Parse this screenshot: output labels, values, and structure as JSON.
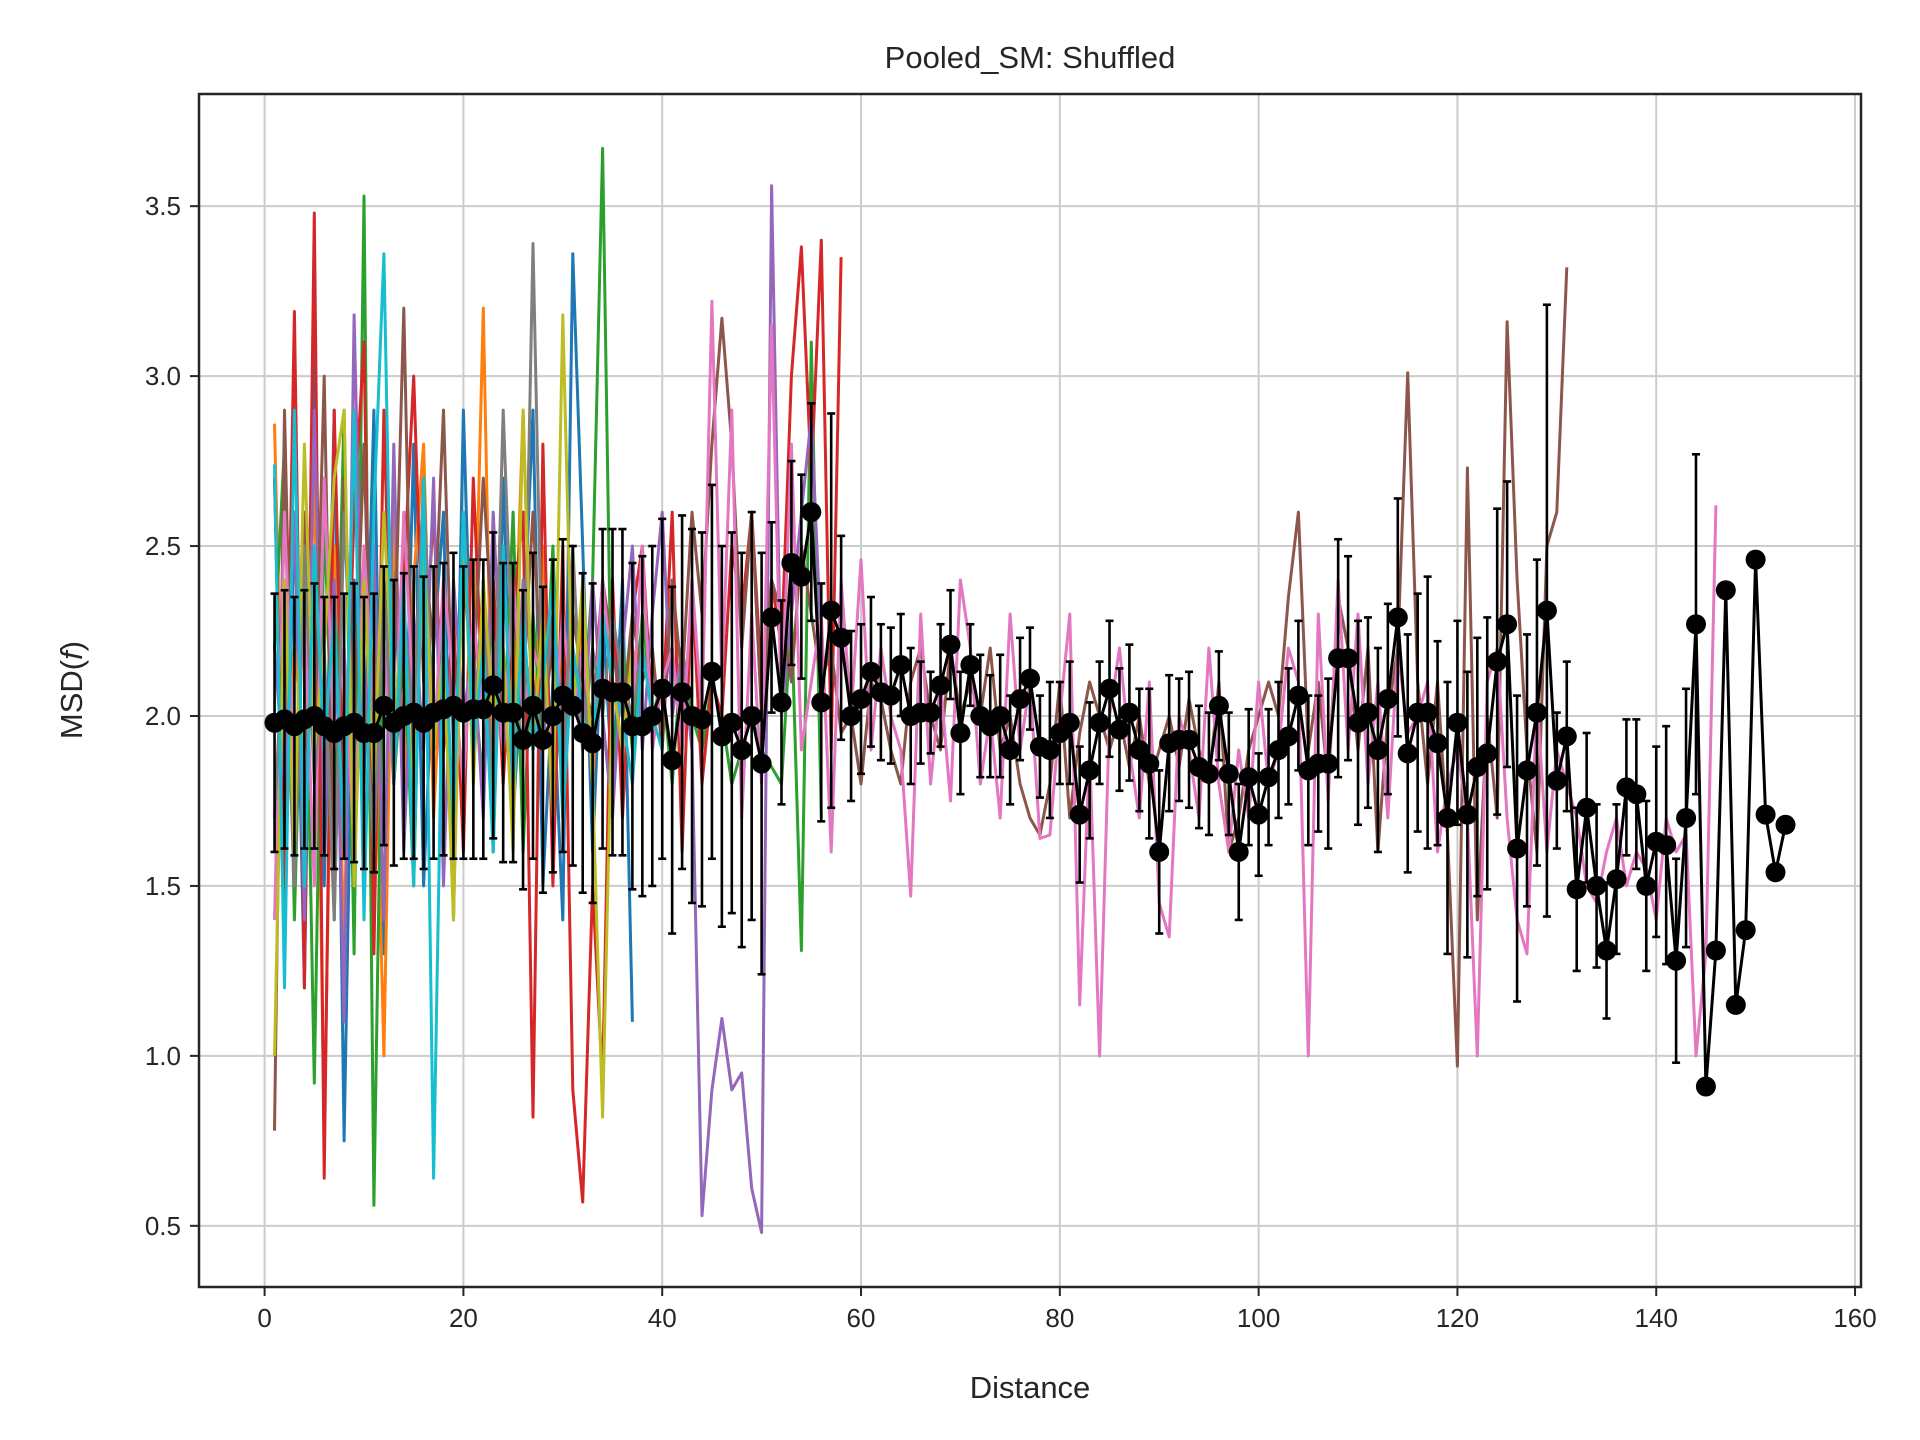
{
  "chart_data": {
    "type": "line",
    "title": "Pooled_SM: Shuffled",
    "xlabel": "Distance",
    "ylabel_main": "MSD(",
    "ylabel_var": "f",
    "ylabel_close": ")",
    "xlim": [
      -6.6,
      160.6
    ],
    "ylim": [
      0.32,
      3.83
    ],
    "xticks": [
      0,
      20,
      40,
      60,
      80,
      100,
      120,
      140,
      160
    ],
    "yticks": [
      0.5,
      1.0,
      1.5,
      2.0,
      2.5,
      3.0,
      3.5
    ],
    "xtick_labels": [
      "0",
      "20",
      "40",
      "60",
      "80",
      "100",
      "120",
      "140",
      "160"
    ],
    "ytick_labels": [
      "0.5",
      "1.0",
      "1.5",
      "2.0",
      "2.5",
      "3.0",
      "3.5"
    ],
    "grid": true,
    "legend": "none",
    "series": [
      {
        "color": "#1f77b4",
        "x_start": 1,
        "values": [
          2.7,
          1.4,
          2.6,
          1.2,
          3.1,
          1.5,
          2.9,
          0.75,
          2.4,
          1.8,
          2.9,
          1.3,
          2.5,
          1.7,
          2.8,
          1.5,
          2.2,
          2.6,
          1.4,
          2.9,
          1.9,
          2.4,
          1.6,
          2.7,
          1.7,
          2.2,
          2.9,
          1.5,
          2.1,
          1.4,
          3.36,
          2.5,
          1.6,
          2.3,
          1.8,
          2.4,
          1.1
        ]
      },
      {
        "color": "#ff7f0e",
        "x_start": 1,
        "values": [
          2.86,
          1.6,
          2.2,
          1.9,
          2.7,
          0.77,
          2.5,
          1.3,
          2.9,
          1.6,
          2.2,
          1.0,
          2.6,
          1.8,
          2.4,
          2.8,
          1.7,
          2.3,
          1.5,
          2.6,
          2.0,
          3.2,
          1.7,
          2.4,
          2.0,
          2.9,
          1.9,
          2.5,
          1.7,
          2.2,
          2.0,
          2.3,
          1.8,
          2.4,
          2.1,
          1.9,
          2.2,
          2.0
        ]
      },
      {
        "color": "#2ca02c",
        "x_start": 1,
        "values": [
          2.2,
          2.8,
          1.4,
          2.5,
          0.92,
          2.6,
          1.7,
          2.9,
          1.3,
          3.53,
          0.56,
          2.4,
          1.8,
          2.2,
          1.5,
          2.7,
          1.9,
          2.3,
          1.6,
          2.5,
          2.1,
          1.8,
          2.4,
          1.9,
          2.6,
          1.6,
          2.3,
          1.9,
          2.5,
          1.7,
          2.2,
          2.0,
          2.4,
          3.67,
          1.8,
          2.2,
          1.9,
          2.3,
          2.0,
          2.1,
          1.8,
          2.2,
          2.0,
          1.9,
          2.1,
          2.0,
          1.8,
          1.9,
          2.0,
          1.9,
          1.85,
          1.8,
          2.3,
          1.31,
          3.1,
          1.7
        ]
      },
      {
        "color": "#d62728",
        "x_start": 1,
        "values": [
          2.7,
          1.5,
          3.19,
          1.2,
          3.48,
          0.64,
          2.9,
          1.7,
          2.6,
          3.1,
          1.3,
          2.9,
          1.8,
          2.4,
          3.0,
          2.1,
          2.6,
          1.9,
          2.3,
          1.6,
          2.7,
          2.0,
          2.4,
          1.8,
          2.3,
          2.6,
          0.82,
          2.8,
          1.5,
          2.5,
          0.9,
          0.57,
          1.5,
          0.92,
          2.4,
          1.7,
          2.3,
          2.5,
          2.0,
          2.0,
          2.6,
          1.6,
          2.4,
          1.8,
          2.1,
          2.0,
          2.5,
          2.3,
          2.6,
          2.1,
          2.4,
          2.2,
          3.0,
          3.38,
          2.7,
          3.4,
          1.9,
          3.35
        ]
      },
      {
        "color": "#9467bd",
        "x_start": 1,
        "values": [
          2.2,
          1.8,
          2.6,
          1.4,
          2.9,
          1.7,
          2.4,
          1.1,
          3.18,
          1.9,
          2.5,
          1.4,
          2.8,
          1.6,
          2.3,
          1.9,
          2.7,
          1.5,
          2.4,
          2.0,
          2.2,
          1.7,
          2.6,
          2.0,
          1.8,
          2.4,
          2.1,
          1.9,
          2.3,
          2.0,
          2.2,
          1.9,
          2.4,
          2.0,
          1.7,
          2.2,
          2.5,
          1.9,
          2.3,
          2.6,
          2.0,
          2.2,
          1.9,
          0.53,
          0.9,
          1.11,
          0.9,
          0.95,
          0.61,
          0.48,
          3.56,
          2.0,
          2.3,
          2.6,
          2.88,
          2.2
        ]
      },
      {
        "color": "#8c564b",
        "x_start": 1,
        "values": [
          0.78,
          2.9,
          1.6,
          2.6,
          1.9,
          3.0,
          1.4,
          2.7,
          2.0,
          2.8,
          1.7,
          2.4,
          2.1,
          3.2,
          1.8,
          2.5,
          2.2,
          2.9,
          1.9,
          2.4,
          2.1,
          2.7,
          2.2,
          2.0,
          2.3,
          2.1,
          2.6,
          2.0,
          2.2,
          1.9,
          2.3,
          2.1,
          2.0,
          2.4,
          2.2,
          2.0,
          2.3,
          2.1,
          2.2,
          1.9,
          2.4,
          2.1,
          2.6,
          2.3,
          2.8,
          3.17,
          2.8,
          2.2,
          2.6,
          2.0,
          2.4,
          2.3,
          2.1,
          2.5,
          2.3,
          2.1,
          2.2,
          1.95,
          2.0,
          1.8,
          2.1,
          2.05,
          1.9,
          1.8,
          2.1,
          2.2,
          2.0,
          1.9,
          2.2,
          2.0,
          2.1,
          2.0,
          2.2,
          1.9,
          2.0,
          1.8,
          1.7,
          1.65,
          1.8,
          2.1,
          1.7,
          1.95,
          2.1,
          2.0,
          1.9,
          2.0,
          1.85,
          2.0,
          1.8,
          1.9,
          2.0,
          1.85,
          2.05,
          1.9,
          1.8,
          2.1,
          1.6,
          1.7,
          1.9,
          2.0,
          2.1,
          2.0,
          2.35,
          2.6,
          1.9,
          2.1,
          1.8,
          2.35,
          2.2,
          1.9,
          2.2,
          1.6,
          2.0,
          2.2,
          3.01,
          2.1,
          1.8,
          2.1,
          1.65,
          0.97,
          2.73,
          1.4,
          2.0,
          1.7,
          3.16,
          2.4,
          1.9,
          1.6,
          2.5,
          2.6,
          3.32
        ]
      },
      {
        "color": "#e377c2",
        "x_start": 1,
        "values": [
          1.4,
          2.6,
          1.8,
          2.3,
          1.5,
          2.7,
          1.9,
          2.2,
          1.6,
          2.5,
          2.0,
          2.2,
          1.8,
          2.6,
          2.0,
          2.3,
          1.9,
          2.4,
          2.1,
          1.8,
          2.3,
          2.0,
          2.2,
          1.9,
          2.4,
          2.0,
          2.2,
          2.1,
          1.9,
          2.3,
          2.0,
          2.2,
          1.9,
          2.4,
          2.1,
          1.9,
          2.0,
          2.5,
          1.9,
          2.1,
          2.2,
          1.9,
          2.4,
          2.0,
          3.22,
          2.1,
          2.9,
          1.7,
          2.3,
          1.8,
          3.15,
          2.0,
          2.8,
          1.9,
          2.1,
          2.3,
          1.6,
          2.4,
          2.0,
          2.46,
          1.9,
          2.2,
          2.0,
          1.9,
          1.47,
          2.3,
          1.8,
          2.1,
          1.75,
          2.4,
          2.2,
          1.8,
          2.0,
          1.7,
          2.3,
          1.9,
          2.1,
          1.64,
          1.65,
          2.0,
          2.3,
          1.15,
          1.9,
          1.0,
          2.0,
          2.2,
          1.9,
          1.7,
          2.1,
          1.45,
          1.35,
          2.0,
          1.9,
          1.7,
          2.2,
          1.8,
          1.6,
          1.9,
          1.7,
          2.1,
          1.8,
          1.9,
          2.2,
          2.1,
          1.0,
          2.3,
          1.75,
          2.4,
          1.9,
          2.3,
          1.8,
          2.1,
          1.7,
          2.2,
          1.95,
          2.0,
          2.1,
          1.6,
          1.8,
          1.9,
          1.7,
          1.0,
          2.1,
          2.2,
          1.7,
          1.4,
          1.3,
          2.05,
          1.6,
          1.9,
          1.8,
          1.7,
          1.5,
          1.45,
          1.6,
          1.7,
          1.5,
          1.6,
          1.55,
          1.4,
          1.7,
          1.6,
          1.65,
          1.0,
          1.3,
          2.62
        ]
      },
      {
        "color": "#7f7f7f",
        "x_start": 1,
        "values": [
          1.7,
          2.3,
          1.5,
          2.5,
          1.8,
          2.2,
          1.4,
          2.6,
          1.9,
          2.1,
          1.6,
          2.4,
          1.8,
          2.3,
          2.0,
          2.7,
          1.9,
          2.2,
          1.7,
          2.5,
          2.0,
          2.3,
          1.8,
          2.9,
          2.1,
          1.9,
          3.39,
          2.0,
          2.3,
          1.8,
          2.5,
          1.9,
          2.2,
          2.0,
          2.3,
          2.1,
          2.0,
          2.2
        ]
      },
      {
        "color": "#bcbd22",
        "x_start": 1,
        "values": [
          1.0,
          2.4,
          1.6,
          2.8,
          1.9,
          2.2,
          2.7,
          2.9,
          1.5,
          2.4,
          1.8,
          2.6,
          2.0,
          2.3,
          1.7,
          2.5,
          1.9,
          2.2,
          1.4,
          2.6,
          1.8,
          2.4,
          2.0,
          2.2,
          1.6,
          2.9,
          1.9,
          2.3,
          1.7,
          3.18,
          2.0,
          2.4,
          1.8,
          0.82,
          2.1,
          1.9,
          2.2
        ]
      },
      {
        "color": "#17becf",
        "x_start": 1,
        "values": [
          2.74,
          1.2,
          2.9,
          1.5,
          2.5,
          1.9,
          2.3,
          1.6,
          2.9,
          1.4,
          2.6,
          3.36,
          1.8,
          2.4,
          1.5,
          2.7,
          0.64,
          2.3,
          1.7,
          2.6,
          1.9,
          2.2,
          1.6,
          2.5,
          1.8,
          2.3,
          1.9,
          2.1,
          2.4,
          1.7,
          2.2,
          2.0,
          1.9,
          2.3,
          2.1,
          2.0,
          1.8,
          2.2,
          2.0,
          1.9
        ]
      }
    ],
    "mean": {
      "color": "#000000",
      "x_start": 1,
      "values": [
        1.98,
        1.99,
        1.97,
        1.99,
        2.0,
        1.97,
        1.95,
        1.97,
        1.98,
        1.95,
        1.95,
        2.03,
        1.98,
        2.0,
        2.01,
        1.98,
        2.01,
        2.02,
        2.03,
        2.01,
        2.02,
        2.02,
        2.09,
        2.01,
        2.01,
        1.93,
        2.03,
        1.93,
        2.0,
        2.06,
        2.03,
        1.95,
        1.92,
        2.08,
        2.07,
        2.07,
        1.97,
        1.97,
        2.0,
        2.08,
        1.87,
        2.07,
        2.0,
        1.99,
        2.13,
        1.94,
        1.98,
        1.9,
        2.0,
        1.86,
        2.29,
        2.04,
        2.45,
        2.41,
        2.6,
        2.04,
        2.31,
        2.23,
        2.0,
        2.05,
        2.13,
        2.07,
        2.06,
        2.15,
        2.0,
        2.01,
        2.01,
        2.09,
        2.21,
        1.95,
        2.15,
        2.0,
        1.97,
        2.0,
        1.9,
        2.05,
        2.11,
        1.91,
        1.9,
        1.95,
        1.98,
        1.71,
        1.84,
        1.98,
        2.08,
        1.96,
        2.01,
        1.9,
        1.86,
        1.6,
        1.92,
        1.93,
        1.93,
        1.85,
        1.83,
        2.03,
        1.83,
        1.6,
        1.82,
        1.71,
        1.82,
        1.9,
        1.94,
        2.06,
        1.84,
        1.86,
        1.86,
        2.17,
        2.17,
        1.98,
        2.01,
        1.9,
        2.05,
        2.29,
        1.89,
        2.01,
        2.01,
        1.92,
        1.7,
        1.98,
        1.71,
        1.85,
        1.89,
        2.16,
        2.27,
        1.61,
        1.84,
        2.01,
        2.31,
        1.81,
        1.94,
        1.49,
        1.73,
        1.5,
        1.31,
        1.52,
        1.79,
        1.77,
        1.5,
        1.63,
        1.62,
        1.28,
        1.7,
        2.27,
        0.91,
        1.31,
        2.37,
        1.15,
        1.37,
        2.46,
        1.71,
        1.54,
        1.68
      ],
      "err": [
        0.38,
        0.38,
        0.38,
        0.38,
        0.39,
        0.38,
        0.4,
        0.39,
        0.41,
        0.4,
        0.41,
        0.41,
        0.42,
        0.42,
        0.43,
        0.43,
        0.43,
        0.43,
        0.45,
        0.43,
        0.44,
        0.44,
        0.45,
        0.44,
        0.44,
        0.44,
        0.45,
        0.45,
        0.46,
        0.46,
        0.47,
        0.47,
        0.47,
        0.47,
        0.48,
        0.48,
        0.48,
        0.5,
        0.5,
        0.5,
        0.51,
        0.52,
        0.55,
        0.55,
        0.55,
        0.56,
        0.56,
        0.58,
        0.6,
        0.62,
        0.28,
        0.3,
        0.3,
        0.3,
        0.32,
        0.35,
        0.58,
        0.3,
        0.25,
        0.22,
        0.22,
        0.2,
        0.2,
        0.15,
        0.2,
        0.15,
        0.12,
        0.18,
        0.16,
        0.18,
        0.12,
        0.18,
        0.15,
        0.18,
        0.16,
        0.18,
        0.15,
        0.15,
        0.2,
        0.15,
        0.18,
        0.2,
        0.2,
        0.18,
        0.2,
        0.18,
        0.2,
        0.18,
        0.22,
        0.24,
        0.2,
        0.18,
        0.2,
        0.18,
        0.18,
        0.16,
        0.18,
        0.2,
        0.2,
        0.18,
        0.2,
        0.2,
        0.2,
        0.22,
        0.22,
        0.2,
        0.25,
        0.35,
        0.3,
        0.3,
        0.28,
        0.3,
        0.28,
        0.35,
        0.35,
        0.35,
        0.4,
        0.3,
        0.4,
        0.3,
        0.42,
        0.38,
        0.4,
        0.45,
        0.42,
        0.45,
        0.4,
        0.45,
        0.9,
        0.2,
        0.22,
        0.24,
        0.22,
        0.24,
        0.2,
        0.22,
        0.2,
        0.22,
        0.25,
        0.28,
        0.35,
        0.3,
        0.38,
        0.5,
        0.0,
        0.0,
        0.0,
        0.0,
        0.0,
        0.0,
        0.0,
        0.0,
        0.0
      ],
      "err_until": 144
    }
  }
}
